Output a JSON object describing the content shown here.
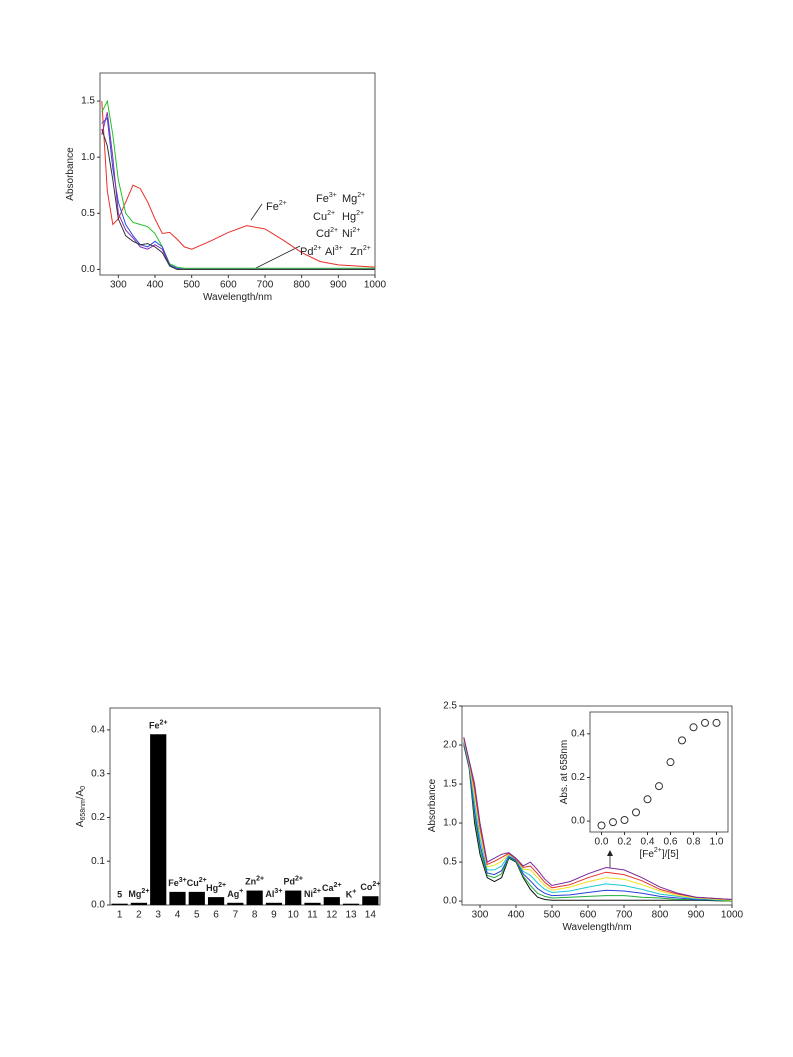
{
  "chart_data": [
    {
      "type": "line",
      "x_label": [
        {
          "t": "Wavelength/nm"
        }
      ],
      "y_label": [
        {
          "t": "Absorbance"
        }
      ],
      "xlim": [
        250,
        1000
      ],
      "xticks": [
        300,
        400,
        500,
        600,
        700,
        800,
        900,
        1000
      ],
      "ylim": [
        -0.05,
        1.75
      ],
      "yticks": [
        {
          "value": 0,
          "label": "0.0"
        },
        {
          "value": 0.5,
          "label": "0.5"
        },
        {
          "value": 1,
          "label": "1.0"
        },
        {
          "value": 1.5,
          "label": "1.5"
        }
      ],
      "x": [
        255,
        270,
        285,
        300,
        320,
        340,
        360,
        380,
        400,
        420,
        440,
        460,
        480,
        500,
        550,
        600,
        650,
        700,
        750,
        800,
        850,
        900,
        950,
        1000
      ],
      "series": [
        {
          "color": "#e8302a",
          "values": [
            1.5,
            0.7,
            0.4,
            0.45,
            0.6,
            0.75,
            0.72,
            0.6,
            0.45,
            0.32,
            0.33,
            0.27,
            0.2,
            0.18,
            0.25,
            0.33,
            0.39,
            0.36,
            0.26,
            0.15,
            0.07,
            0.04,
            0.03,
            0.02
          ]
        },
        {
          "color": "#22c22a",
          "values": [
            1.4,
            1.5,
            1.2,
            0.8,
            0.5,
            0.42,
            0.4,
            0.38,
            0.32,
            0.2,
            0.05,
            0.02,
            0.01,
            0.01,
            0.01,
            0.01,
            0.01,
            0.01,
            0.01,
            0.01,
            0.01,
            0.01,
            0.01,
            0.01
          ]
        },
        {
          "color": "#2a4fd8",
          "values": [
            1.3,
            1.35,
            0.9,
            0.6,
            0.4,
            0.3,
            0.22,
            0.2,
            0.25,
            0.2,
            0.04,
            0.01,
            0,
            0,
            0,
            0,
            0,
            0,
            0,
            0,
            0,
            0,
            0,
            0
          ]
        },
        {
          "color": "#8a2ab8",
          "values": [
            1.2,
            1.4,
            1.0,
            0.5,
            0.35,
            0.28,
            0.2,
            0.18,
            0.22,
            0.18,
            0.03,
            0,
            0,
            0,
            0,
            0,
            0,
            0,
            0,
            0,
            0,
            0,
            0,
            0
          ]
        },
        {
          "color": "#333333",
          "values": [
            1.25,
            1.1,
            0.8,
            0.45,
            0.3,
            0.25,
            0.22,
            0.23,
            0.2,
            0.15,
            0.03,
            0,
            0,
            0,
            0,
            0,
            0,
            0,
            0,
            0,
            0,
            0,
            0,
            0
          ]
        }
      ],
      "annotations": [
        [
          {
            "t": "Fe"
          },
          {
            "sup": "2+"
          }
        ],
        [
          {
            "t": "Fe"
          },
          {
            "sup": "3+"
          }
        ],
        [
          {
            "t": "Mg"
          },
          {
            "sup": "2+"
          }
        ],
        [
          {
            "t": "Cu"
          },
          {
            "sup": "2+"
          }
        ],
        [
          {
            "t": "Hg"
          },
          {
            "sup": "2+"
          }
        ],
        [
          {
            "t": "Cd"
          },
          {
            "sup": "2+"
          }
        ],
        [
          {
            "t": "Ni"
          },
          {
            "sup": "2+"
          }
        ],
        [
          {
            "t": "Pd"
          },
          {
            "sup": "2+"
          }
        ],
        [
          {
            "t": "Al"
          },
          {
            "sup": "3+"
          }
        ],
        [
          {
            "t": "Zn"
          },
          {
            "sup": "2+"
          }
        ]
      ]
    },
    {
      "type": "bar",
      "y_label": [
        {
          "t": "A"
        },
        {
          "sub": "658nm"
        },
        {
          "t": "/A"
        },
        {
          "sub": "0"
        }
      ],
      "categories": [
        "1",
        "2",
        "3",
        "4",
        "5",
        "6",
        "7",
        "8",
        "9",
        "10",
        "11",
        "12",
        "13",
        "14"
      ],
      "values": [
        0.003,
        0.005,
        0.39,
        0.03,
        0.03,
        0.018,
        0.005,
        0.033,
        0.005,
        0.033,
        0.005,
        0.018,
        0.003,
        0.02
      ],
      "color": "#000000",
      "ylim": [
        0,
        0.45
      ],
      "yticks": [
        {
          "value": 0,
          "label": "0.0"
        },
        0.1,
        0.2,
        0.3,
        0.4
      ],
      "bar_labels": [
        [
          {
            "t": "5"
          }
        ],
        [
          {
            "t": "Mg"
          },
          {
            "sup": "2+"
          }
        ],
        [
          {
            "t": "Fe"
          },
          {
            "sup": "2+"
          }
        ],
        [
          {
            "t": "Fe"
          },
          {
            "sup": "3+"
          }
        ],
        [
          {
            "t": "Cu"
          },
          {
            "sup": "2+"
          }
        ],
        [
          {
            "t": "Hg"
          },
          {
            "sup": "2+"
          }
        ],
        [
          {
            "t": "Ag"
          },
          {
            "sup": "+"
          }
        ],
        [
          {
            "t": "Zn"
          },
          {
            "sup": "2+"
          }
        ],
        [
          {
            "t": "Al"
          },
          {
            "sup": "3+"
          }
        ],
        [
          {
            "t": "Pd"
          },
          {
            "sup": "2+"
          }
        ],
        [
          {
            "t": "Ni"
          },
          {
            "sup": "2+"
          }
        ],
        [
          {
            "t": "Ca"
          },
          {
            "sup": "2+"
          }
        ],
        [
          {
            "t": "K"
          },
          {
            "sup": "+"
          }
        ],
        [
          {
            "t": "Co"
          },
          {
            "sup": "2+"
          }
        ]
      ]
    },
    {
      "type": "line",
      "x_label": [
        {
          "t": "Wavelength/nm"
        }
      ],
      "y_label": [
        {
          "t": "Absorbance"
        }
      ],
      "xlim": [
        250,
        1000
      ],
      "xticks": [
        300,
        400,
        500,
        600,
        700,
        800,
        900,
        1000
      ],
      "ylim": [
        -0.05,
        2.5
      ],
      "yticks": [
        {
          "value": 0,
          "label": "0.0"
        },
        {
          "value": 0.5,
          "label": "0.5"
        },
        {
          "value": 1,
          "label": "1.0"
        },
        {
          "value": 1.5,
          "label": "1.5"
        },
        {
          "value": 2,
          "label": "2.0"
        },
        2.5
      ],
      "x": [
        255,
        270,
        285,
        300,
        320,
        340,
        360,
        380,
        400,
        420,
        440,
        460,
        480,
        500,
        550,
        600,
        650,
        700,
        750,
        800,
        850,
        900,
        1000
      ],
      "series": [
        {
          "color": "#111111",
          "values": [
            2.0,
            1.7,
            1.0,
            0.6,
            0.3,
            0.25,
            0.3,
            0.55,
            0.5,
            0.3,
            0.15,
            0.05,
            0.02,
            0.01,
            0.01,
            0.01,
            0.01,
            0.01,
            0.01,
            0.01,
            0.01,
            0.01,
            0.0
          ]
        },
        {
          "color": "#1fae3a",
          "values": [
            2.02,
            1.72,
            1.08,
            0.66,
            0.33,
            0.3,
            0.35,
            0.56,
            0.51,
            0.32,
            0.2,
            0.1,
            0.06,
            0.04,
            0.05,
            0.06,
            0.07,
            0.07,
            0.05,
            0.04,
            0.02,
            0.02,
            0.0
          ]
        },
        {
          "color": "#2a3fd8",
          "values": [
            2.03,
            1.73,
            1.15,
            0.72,
            0.36,
            0.34,
            0.39,
            0.57,
            0.52,
            0.35,
            0.26,
            0.16,
            0.1,
            0.07,
            0.08,
            0.11,
            0.14,
            0.13,
            0.1,
            0.06,
            0.04,
            0.02,
            0.01
          ]
        },
        {
          "color": "#19c8d8",
          "values": [
            2.05,
            1.75,
            1.25,
            0.8,
            0.4,
            0.4,
            0.45,
            0.59,
            0.53,
            0.38,
            0.33,
            0.23,
            0.15,
            0.11,
            0.13,
            0.18,
            0.22,
            0.2,
            0.15,
            0.09,
            0.06,
            0.03,
            0.01
          ]
        },
        {
          "color": "#f0e01a",
          "values": [
            2.07,
            1.77,
            1.35,
            0.88,
            0.44,
            0.46,
            0.51,
            0.6,
            0.54,
            0.41,
            0.4,
            0.3,
            0.2,
            0.14,
            0.18,
            0.25,
            0.3,
            0.28,
            0.21,
            0.13,
            0.07,
            0.04,
            0.01
          ]
        },
        {
          "color": "#e8302a",
          "values": [
            2.09,
            1.79,
            1.43,
            0.94,
            0.47,
            0.51,
            0.56,
            0.61,
            0.54,
            0.43,
            0.45,
            0.35,
            0.24,
            0.17,
            0.21,
            0.3,
            0.37,
            0.34,
            0.26,
            0.15,
            0.09,
            0.05,
            0.02
          ]
        },
        {
          "color": "#7a2a9a",
          "values": [
            2.1,
            1.8,
            1.5,
            1.0,
            0.5,
            0.55,
            0.6,
            0.62,
            0.55,
            0.45,
            0.5,
            0.4,
            0.28,
            0.2,
            0.25,
            0.35,
            0.43,
            0.4,
            0.3,
            0.18,
            0.1,
            0.05,
            0.02
          ]
        }
      ]
    },
    {
      "type": "scatter",
      "x_label": [
        {
          "t": "[Fe"
        },
        {
          "sup": "2+"
        },
        {
          "t": "]/[5]"
        }
      ],
      "y_label": [
        {
          "t": "Abs. at 658nm"
        }
      ],
      "xlim": [
        -0.1,
        1.1
      ],
      "xticks": [
        {
          "value": 0,
          "label": "0.0"
        },
        {
          "value": 0.2,
          "label": "0.2"
        },
        {
          "value": 0.4,
          "label": "0.4"
        },
        {
          "value": 0.6,
          "label": "0.6"
        },
        {
          "value": 0.8,
          "label": "0.8"
        },
        {
          "value": 1,
          "label": "1.0"
        }
      ],
      "ylim": [
        -0.05,
        0.5
      ],
      "yticks": [
        {
          "value": 0,
          "label": "0.0"
        },
        0.2,
        0.4
      ],
      "x": [
        0,
        0.1,
        0.2,
        0.3,
        0.4,
        0.5,
        0.6,
        0.7,
        0.8,
        0.9,
        1.0
      ],
      "values": [
        -0.02,
        -0.005,
        0.005,
        0.04,
        0.1,
        0.16,
        0.27,
        0.37,
        0.43,
        0.45,
        0.45
      ]
    }
  ]
}
